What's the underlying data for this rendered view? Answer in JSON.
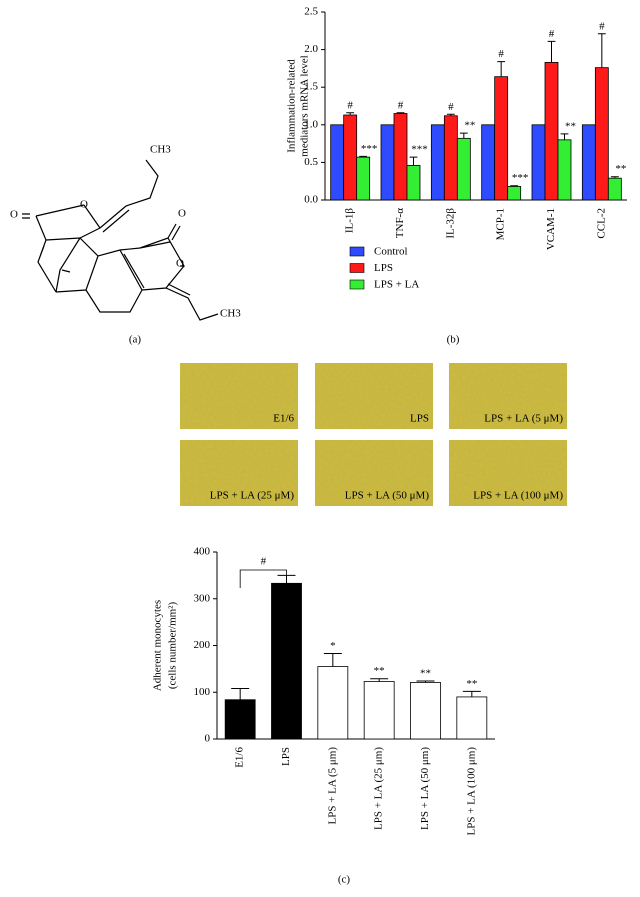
{
  "structure": {
    "atoms": [
      "CH3",
      "O",
      "O",
      "O",
      "O",
      "CH3"
    ],
    "panel_label": "(a)"
  },
  "chart_data": [
    {
      "type": "bar",
      "panel_label": "(b)",
      "ylabel": [
        "Inflammation-related",
        "mediators mRNA level"
      ],
      "categories": [
        "IL-1β",
        "TNF-α",
        "IL-32β",
        "MCP-1",
        "VCAM-1",
        "CCL-2"
      ],
      "series": [
        {
          "name": "Control",
          "color": "#2f4bff",
          "values": [
            1,
            1,
            1,
            1,
            1,
            1
          ]
        },
        {
          "name": "LPS",
          "color": "#ff1a1a",
          "values": [
            1.13,
            1.15,
            1.12,
            1.64,
            1.83,
            1.76
          ],
          "errors": [
            0.03,
            0.01,
            0.02,
            0.2,
            0.28,
            0.45
          ],
          "annotations": [
            "#",
            "#",
            "#",
            "#",
            "#",
            "#"
          ]
        },
        {
          "name": "LPS + LA",
          "color": "#33ee33",
          "values": [
            0.57,
            0.46,
            0.82,
            0.18,
            0.8,
            0.29
          ],
          "errors": [
            0.01,
            0.11,
            0.07,
            0.01,
            0.08,
            0.02
          ],
          "annotations": [
            "***",
            "***",
            "**",
            "***",
            "**",
            "**"
          ]
        }
      ],
      "ylim": [
        0,
        2.5
      ],
      "yticks": [
        {
          "value": 0,
          "label": "0.0"
        },
        0.5,
        {
          "value": 1,
          "label": "1.0"
        },
        1.5,
        {
          "value": 2,
          "label": "2.0"
        },
        2.5
      ]
    },
    {
      "type": "bar",
      "panel_label": "(c)",
      "ylabel": [
        "Adherent monocytes",
        "(cells number/mm²)"
      ],
      "categories": [
        "E1/6",
        "LPS",
        "LPS + LA (5 μm)",
        "LPS + LA (25 μm)",
        "LPS + LA (50 μm)",
        "LPS + LA (100 μm)"
      ],
      "values": [
        84,
        333,
        155,
        123,
        121,
        90
      ],
      "errors": [
        24,
        17,
        28,
        6,
        3,
        12
      ],
      "colors": [
        "#000000",
        "#000000",
        "#ffffff",
        "#ffffff",
        "#ffffff",
        "#ffffff"
      ],
      "annotations": [
        null,
        null,
        "*",
        "**",
        "**",
        "**"
      ],
      "bracket_label": "#",
      "ylim": [
        0,
        400
      ],
      "yticks": [
        0,
        100,
        200,
        300,
        400
      ]
    }
  ],
  "micrographs": {
    "labels": [
      "E1/6",
      "LPS",
      "LPS + LA (5 μM)",
      "LPS + LA (25 μM)",
      "LPS + LA (50 μM)",
      "LPS + LA (100 μM)"
    ]
  }
}
